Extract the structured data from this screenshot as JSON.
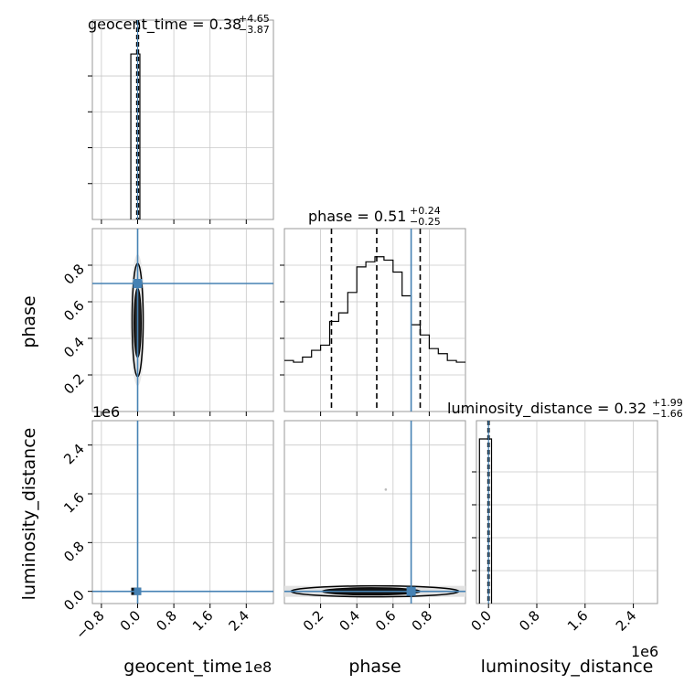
{
  "chart_data": {
    "type": "corner",
    "parameters": [
      "geocent_time",
      "phase",
      "luminosity_distance"
    ],
    "truth_color": "#4682b4",
    "truths": {
      "geocent_time": 0.0,
      "phase": 0.7,
      "luminosity_distance": 0.0
    },
    "titles": [
      {
        "param": "geocent_time",
        "label": "geocent_time = 0.38",
        "plus": "+4.65",
        "minus": "−3.87"
      },
      {
        "param": "phase",
        "label": "phase = 0.51",
        "plus": "+0.24",
        "minus": "−0.25"
      },
      {
        "param": "luminosity_distance",
        "label": "luminosity_distance = 0.32",
        "plus": "+1.99",
        "minus": "−1.66"
      }
    ],
    "axis_labels": {
      "geocent_time": "geocent_time",
      "phase": "phase",
      "luminosity_distance": "luminosity_distance"
    },
    "offset_labels": {
      "geocent_time": "1e8",
      "luminosity_distance": "1e6",
      "luminosity_distance_y": "1e6"
    },
    "ranges": {
      "geocent_time": [
        -1.0,
        3.0
      ],
      "phase": [
        0.0,
        1.0
      ],
      "luminosity_distance": [
        -0.2,
        2.8
      ]
    },
    "ticks": {
      "geocent_time": [
        -0.8,
        0.0,
        0.8,
        1.6,
        2.4
      ],
      "phase_x": [
        0.2,
        0.4,
        0.6,
        0.8
      ],
      "phase_y": [
        0.2,
        0.4,
        0.6,
        0.8
      ],
      "luminosity_distance": [
        0.0,
        0.8,
        1.6,
        2.4
      ]
    },
    "tick_labels": {
      "geocent_time": [
        "−0.8",
        "0.0",
        "0.8",
        "1.6",
        "2.4"
      ],
      "phase": [
        "0.2",
        "0.4",
        "0.6",
        "0.8"
      ],
      "luminosity_distance": [
        "0.0",
        "0.8",
        "1.6",
        "2.4"
      ]
    },
    "quantile_lines": {
      "geocent_time": [
        -0.02,
        0.0,
        0.02
      ],
      "phase": [
        0.26,
        0.51,
        0.75
      ],
      "luminosity_distance": [
        -0.01,
        0.0,
        0.01
      ]
    },
    "phase_histogram": {
      "bin_edges": [
        0.0,
        0.05,
        0.1,
        0.15,
        0.2,
        0.25,
        0.3,
        0.35,
        0.4,
        0.45,
        0.5,
        0.55,
        0.6,
        0.65,
        0.7,
        0.75,
        0.8,
        0.85,
        0.9,
        0.95,
        1.0
      ],
      "values": [
        0.3,
        0.29,
        0.32,
        0.36,
        0.39,
        0.53,
        0.58,
        0.7,
        0.85,
        0.88,
        0.91,
        0.89,
        0.82,
        0.68,
        0.51,
        0.45,
        0.37,
        0.34,
        0.3,
        0.29
      ]
    },
    "geocent_time_histogram": {
      "bins": [
        [
          -0.15,
          0.05,
          1.0
        ]
      ]
    },
    "luminosity_distance_histogram": {
      "bins": [
        [
          -0.15,
          0.05,
          1.0
        ]
      ]
    },
    "grid": true
  }
}
